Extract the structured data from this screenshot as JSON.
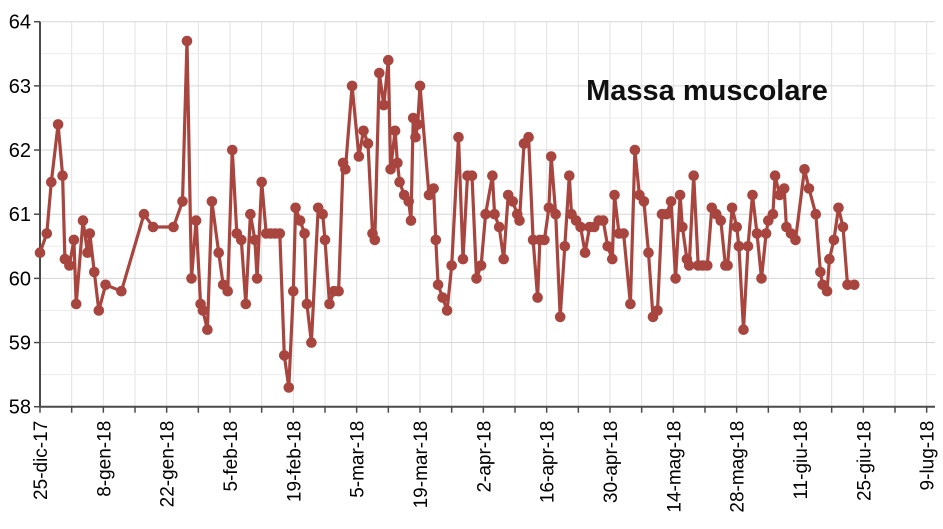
{
  "chart_data": {
    "type": "line",
    "title": "Massa muscolare",
    "xlabel": "",
    "ylabel": "",
    "ylim": [
      58,
      64
    ],
    "y_ticks": [
      58,
      59,
      60,
      61,
      62,
      63,
      64
    ],
    "y_minor_step": 0.5,
    "grid": true,
    "legend_position": "none",
    "x_total_days": 196,
    "x_grid_interval_days": 7,
    "x_label_interval_days": 14,
    "x_tick_labels": [
      "25-dic-17",
      "8-gen-18",
      "22-gen-18",
      "5-feb-18",
      "19-feb-18",
      "5-mar-18",
      "19-mar-18",
      "2-apr-18",
      "16-apr-18",
      "30-apr-18",
      "14-mag-18",
      "28-mag-18",
      "11-giu-18",
      "25-giu-18",
      "9-lug-18"
    ],
    "points_format": "[day_offset_from_25_dec_2017, value]",
    "points": [
      [
        0,
        60.4
      ],
      [
        1.5,
        60.7
      ],
      [
        2.5,
        61.5
      ],
      [
        4,
        62.4
      ],
      [
        5,
        61.6
      ],
      [
        5.5,
        60.3
      ],
      [
        6.5,
        60.2
      ],
      [
        7.5,
        60.6
      ],
      [
        8,
        59.6
      ],
      [
        9.5,
        60.9
      ],
      [
        10.5,
        60.4
      ],
      [
        11,
        60.7
      ],
      [
        12,
        60.1
      ],
      [
        13,
        59.5
      ],
      [
        14.5,
        59.9
      ],
      [
        18,
        59.8
      ],
      [
        23,
        61.0
      ],
      [
        25,
        60.8
      ],
      [
        29.5,
        60.8
      ],
      [
        31.5,
        61.2
      ],
      [
        32.5,
        63.7
      ],
      [
        33.5,
        60.0
      ],
      [
        34.5,
        60.9
      ],
      [
        35.5,
        59.6
      ],
      [
        36,
        59.5
      ],
      [
        37,
        59.2
      ],
      [
        38,
        61.2
      ],
      [
        39.5,
        60.4
      ],
      [
        40.5,
        59.9
      ],
      [
        41.5,
        59.8
      ],
      [
        42.5,
        62.0
      ],
      [
        43.5,
        60.7
      ],
      [
        44.5,
        60.6
      ],
      [
        45.5,
        59.6
      ],
      [
        46.5,
        61.0
      ],
      [
        47.5,
        60.6
      ],
      [
        48,
        60.0
      ],
      [
        49,
        61.5
      ],
      [
        50,
        60.7
      ],
      [
        51,
        60.7
      ],
      [
        52,
        60.7
      ],
      [
        53,
        60.7
      ],
      [
        54,
        58.8
      ],
      [
        55,
        58.3
      ],
      [
        56,
        59.8
      ],
      [
        56.5,
        61.1
      ],
      [
        57.5,
        60.9
      ],
      [
        58.5,
        60.7
      ],
      [
        59,
        59.6
      ],
      [
        60,
        59.0
      ],
      [
        61.5,
        61.1
      ],
      [
        62.5,
        61.0
      ],
      [
        63,
        60.6
      ],
      [
        64,
        59.6
      ],
      [
        65,
        59.8
      ],
      [
        66,
        59.8
      ],
      [
        67,
        61.8
      ],
      [
        67.5,
        61.7
      ],
      [
        69,
        63.0
      ],
      [
        70.5,
        61.9
      ],
      [
        71.5,
        62.3
      ],
      [
        72.5,
        62.1
      ],
      [
        73.5,
        60.7
      ],
      [
        74,
        60.6
      ],
      [
        75,
        63.2
      ],
      [
        76,
        62.7
      ],
      [
        77,
        63.4
      ],
      [
        77.5,
        61.7
      ],
      [
        78.5,
        62.3
      ],
      [
        79,
        61.8
      ],
      [
        79.5,
        61.5
      ],
      [
        80.5,
        61.3
      ],
      [
        81.5,
        61.2
      ],
      [
        82,
        60.9
      ],
      [
        82.5,
        62.5
      ],
      [
        83,
        62.2
      ],
      [
        83.5,
        62.4
      ],
      [
        84,
        63.0
      ],
      [
        86,
        61.3
      ],
      [
        87,
        61.4
      ],
      [
        87.5,
        60.6
      ],
      [
        88,
        59.9
      ],
      [
        89,
        59.7
      ],
      [
        90,
        59.5
      ],
      [
        91,
        60.2
      ],
      [
        92.5,
        62.2
      ],
      [
        93.5,
        60.3
      ],
      [
        94.5,
        61.6
      ],
      [
        95.5,
        61.6
      ],
      [
        96.5,
        60.0
      ],
      [
        97.5,
        60.2
      ],
      [
        98.5,
        61.0
      ],
      [
        100,
        61.6
      ],
      [
        100.5,
        61.0
      ],
      [
        101.5,
        60.8
      ],
      [
        102.5,
        60.3
      ],
      [
        103.5,
        61.3
      ],
      [
        104.5,
        61.2
      ],
      [
        105.5,
        61.0
      ],
      [
        106,
        60.9
      ],
      [
        107,
        62.1
      ],
      [
        108,
        62.2
      ],
      [
        109,
        60.6
      ],
      [
        110,
        59.7
      ],
      [
        110.5,
        60.6
      ],
      [
        111.5,
        60.6
      ],
      [
        112.5,
        61.1
      ],
      [
        113,
        61.9
      ],
      [
        114,
        61.0
      ],
      [
        115,
        59.4
      ],
      [
        116,
        60.5
      ],
      [
        117,
        61.6
      ],
      [
        117.5,
        61.0
      ],
      [
        118.5,
        60.9
      ],
      [
        119.5,
        60.8
      ],
      [
        120.5,
        60.4
      ],
      [
        121.5,
        60.8
      ],
      [
        122.5,
        60.8
      ],
      [
        123.5,
        60.9
      ],
      [
        124.5,
        60.9
      ],
      [
        125.5,
        60.5
      ],
      [
        126.5,
        60.3
      ],
      [
        127,
        61.3
      ],
      [
        128,
        60.7
      ],
      [
        129,
        60.7
      ],
      [
        130.5,
        59.6
      ],
      [
        131.5,
        62.0
      ],
      [
        132.5,
        61.3
      ],
      [
        133.5,
        61.2
      ],
      [
        134.5,
        60.4
      ],
      [
        135.5,
        59.4
      ],
      [
        136.5,
        59.5
      ],
      [
        137.5,
        61.0
      ],
      [
        138.5,
        61.0
      ],
      [
        139.5,
        61.2
      ],
      [
        140.5,
        60.0
      ],
      [
        141.5,
        61.3
      ],
      [
        142,
        60.8
      ],
      [
        143,
        60.3
      ],
      [
        143.5,
        60.2
      ],
      [
        144.5,
        61.6
      ],
      [
        145.5,
        60.2
      ],
      [
        146.5,
        60.2
      ],
      [
        147.5,
        60.2
      ],
      [
        148.5,
        61.1
      ],
      [
        149.5,
        61.0
      ],
      [
        150.5,
        60.9
      ],
      [
        151.5,
        60.2
      ],
      [
        152,
        60.2
      ],
      [
        153,
        61.1
      ],
      [
        154,
        60.8
      ],
      [
        154.5,
        60.5
      ],
      [
        155.5,
        59.2
      ],
      [
        156.5,
        60.5
      ],
      [
        157.5,
        61.3
      ],
      [
        158.5,
        60.7
      ],
      [
        159.5,
        60.0
      ],
      [
        160.5,
        60.7
      ],
      [
        161,
        60.9
      ],
      [
        162,
        61.0
      ],
      [
        162.5,
        61.6
      ],
      [
        163.5,
        61.3
      ],
      [
        164.5,
        61.4
      ],
      [
        165,
        60.8
      ],
      [
        166,
        60.7
      ],
      [
        167,
        60.6
      ],
      [
        169,
        61.7
      ],
      [
        170,
        61.4
      ],
      [
        171.5,
        61.0
      ],
      [
        172.5,
        60.1
      ],
      [
        173,
        59.9
      ],
      [
        174,
        59.8
      ],
      [
        174.5,
        60.3
      ],
      [
        175.5,
        60.6
      ],
      [
        176.5,
        61.1
      ],
      [
        177.5,
        60.8
      ],
      [
        178.5,
        59.9
      ],
      [
        180,
        59.9
      ]
    ]
  },
  "style": {
    "line_color": "#A8453E",
    "marker_color": "#A8453E",
    "grid_minor_color": "#ececec",
    "grid_major_color": "#d6d6d6",
    "grid_vertical_color": "#e2e2e2",
    "axis_color": "#4a4a4a",
    "label_color": "#000000",
    "title_color": "#111111",
    "background": "#ffffff"
  }
}
